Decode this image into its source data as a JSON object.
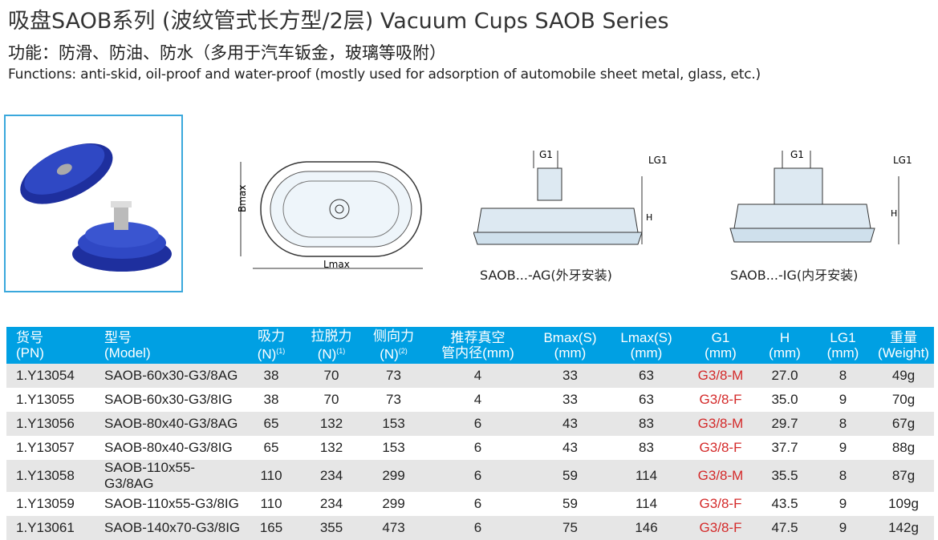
{
  "title": "吸盘SAOB系列 (波纹管式长方型/2层)  Vacuum Cups SAOB Series",
  "subtitle_cn": "功能：防滑、防油、防水（多用于汽车钣金，玻璃等吸附）",
  "subtitle_en": "Functions: anti-skid, oil-proof and water-proof (mostly used for adsorption of automobile sheet metal, glass, etc.)",
  "drawings": {
    "bmax": "Bmax",
    "lmax": "Lmax",
    "g1": "G1",
    "lg1": "LG1",
    "h": "H",
    "ag_caption": "SAOB...-AG(外牙安装)",
    "ig_caption": "SAOB...-IG(内牙安装)"
  },
  "colors": {
    "header": "#00a0e3",
    "stripe": "#e6e6e6",
    "thread": "#d42a2a",
    "cup": "#2a3fb0"
  },
  "table": {
    "headers": [
      {
        "l1": "货号",
        "l2": "(PN)",
        "sup": ""
      },
      {
        "l1": "型号",
        "l2": "(Model)",
        "sup": ""
      },
      {
        "l1": "吸力",
        "l2": "(N)",
        "sup": "(1)"
      },
      {
        "l1": "拉脱力",
        "l2": "(N)",
        "sup": "(1)"
      },
      {
        "l1": "侧向力",
        "l2": "(N)",
        "sup": "(2)"
      },
      {
        "l1": "推荐真空",
        "l2": "管内径(mm)",
        "sup": ""
      },
      {
        "l1": "Bmax(S)",
        "l2": "(mm)",
        "sup": ""
      },
      {
        "l1": "Lmax(S)",
        "l2": "(mm)",
        "sup": ""
      },
      {
        "l1": "G1",
        "l2": "(mm)",
        "sup": ""
      },
      {
        "l1": "H",
        "l2": "(mm)",
        "sup": ""
      },
      {
        "l1": "LG1",
        "l2": "(mm)",
        "sup": ""
      },
      {
        "l1": "重量",
        "l2": "(Weight)",
        "sup": ""
      }
    ],
    "rows": [
      [
        "1.Y13054",
        "SAOB-60x30-G3/8AG",
        "38",
        "70",
        "73",
        "4",
        "33",
        "63",
        "G3/8-M",
        "27.0",
        "8",
        "49g"
      ],
      [
        "1.Y13055",
        "SAOB-60x30-G3/8IG",
        "38",
        "70",
        "73",
        "4",
        "33",
        "63",
        "G3/8-F",
        "35.0",
        "9",
        "70g"
      ],
      [
        "1.Y13056",
        "SAOB-80x40-G3/8AG",
        "65",
        "132",
        "153",
        "6",
        "43",
        "83",
        "G3/8-M",
        "29.7",
        "8",
        "67g"
      ],
      [
        "1.Y13057",
        "SAOB-80x40-G3/8IG",
        "65",
        "132",
        "153",
        "6",
        "43",
        "83",
        "G3/8-F",
        "37.7",
        "9",
        "88g"
      ],
      [
        "1.Y13058",
        "SAOB-110x55-G3/8AG",
        "110",
        "234",
        "299",
        "6",
        "59",
        "114",
        "G3/8-M",
        "35.5",
        "8",
        "87g"
      ],
      [
        "1.Y13059",
        "SAOB-110x55-G3/8IG",
        "110",
        "234",
        "299",
        "6",
        "59",
        "114",
        "G3/8-F",
        "43.5",
        "9",
        "109g"
      ],
      [
        "1.Y13061",
        "SAOB-140x70-G3/8IG",
        "165",
        "355",
        "473",
        "6",
        "75",
        "146",
        "G3/8-F",
        "47.5",
        "9",
        "142g"
      ]
    ]
  }
}
